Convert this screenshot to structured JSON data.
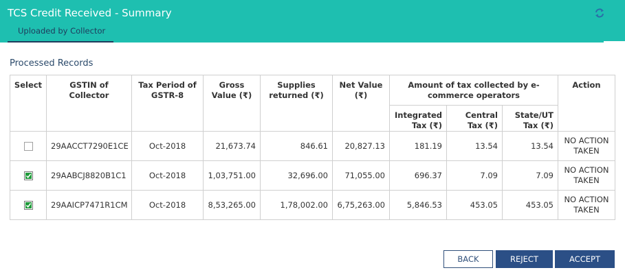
{
  "header": {
    "title": "TCS Credit Received - Summary",
    "tab_label": "Uploaded by Collector",
    "refresh_icon": "refresh-icon",
    "bg_color": "#1ebfb0"
  },
  "section": {
    "title": "Processed Records"
  },
  "table": {
    "headers": {
      "select": "Select",
      "gstin": "GSTIN of Collector",
      "tax_period": "Tax Period of GSTR-8",
      "gross_value": "Gross Value (₹)",
      "supplies_returned": "Supplies returned (₹)",
      "net_value": "Net Value (₹)",
      "amount_group": "Amount of tax collected by e-commerce operators",
      "integrated_tax": "Integrated Tax (₹)",
      "central_tax": "Central Tax (₹)",
      "state_ut_tax": "State/UT Tax (₹)",
      "action": "Action"
    },
    "rows": [
      {
        "checked": false,
        "gstin": "29AACCT7290E1CE",
        "tax_period": "Oct-2018",
        "gross_value": "21,673.74",
        "supplies_returned": "846.61",
        "net_value": "20,827.13",
        "integrated_tax": "181.19",
        "central_tax": "13.54",
        "state_ut_tax": "13.54",
        "action": "NO ACTION TAKEN"
      },
      {
        "checked": true,
        "gstin": "29AABCJ8820B1C1",
        "tax_period": "Oct-2018",
        "gross_value": "1,03,751.00",
        "supplies_returned": "32,696.00",
        "net_value": "71,055.00",
        "integrated_tax": "696.37",
        "central_tax": "7.09",
        "state_ut_tax": "7.09",
        "action": "NO ACTION TAKEN"
      },
      {
        "checked": true,
        "gstin": "29AAICP7471R1CM",
        "tax_period": "Oct-2018",
        "gross_value": "8,53,265.00",
        "supplies_returned": "1,78,002.00",
        "net_value": "6,75,263.00",
        "integrated_tax": "5,846.53",
        "central_tax": "453.05",
        "state_ut_tax": "453.05",
        "action": "NO ACTION TAKEN"
      }
    ]
  },
  "buttons": {
    "back": "BACK",
    "reject": "REJECT",
    "accept": "ACCEPT"
  }
}
